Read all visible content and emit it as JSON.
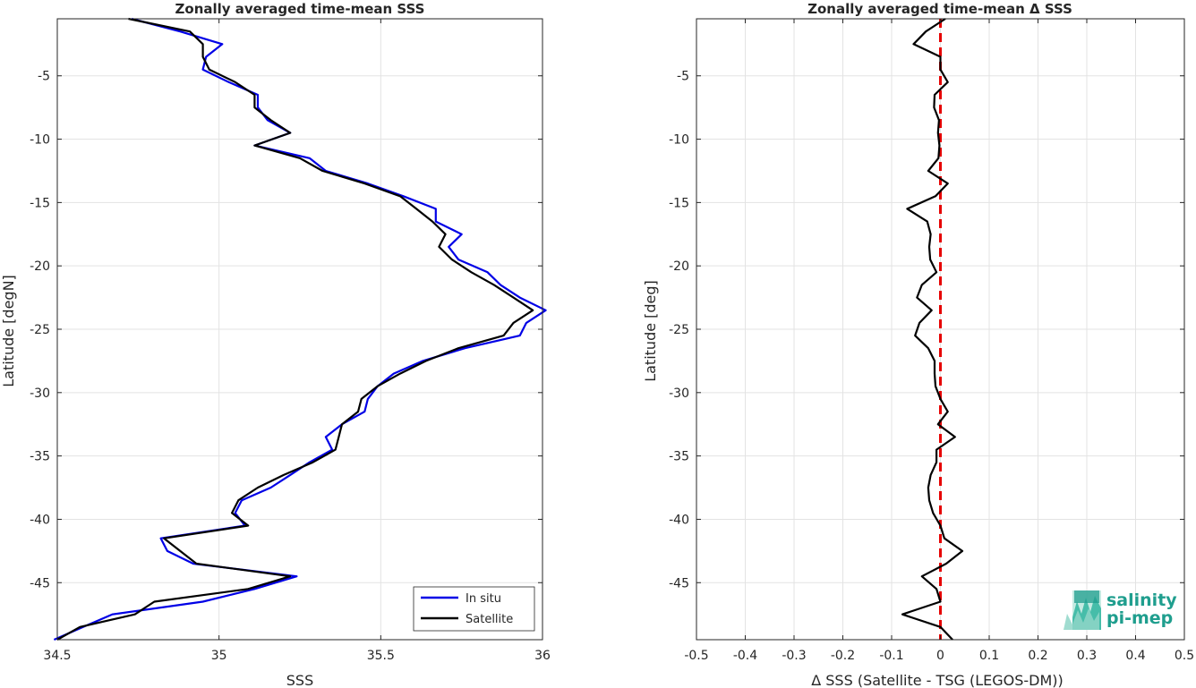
{
  "chart_data": [
    {
      "type": "line",
      "title": "Zonally averaged time-mean SSS",
      "xlabel": "SSS",
      "ylabel": "Latitude [degN]",
      "xlim": [
        34.5,
        36.0
      ],
      "ylim": [
        -49.5,
        -0.5
      ],
      "xticks": [
        "34.5",
        "35",
        "35.5",
        "36"
      ],
      "yticks": [
        "-5",
        "-10",
        "-15",
        "-20",
        "-25",
        "-30",
        "-35",
        "-40",
        "-45"
      ],
      "grid": true,
      "legend": "bottom-right",
      "series": [
        {
          "name": "In situ",
          "color": "#0000e6",
          "points": [
            [
              34.73,
              -0.5
            ],
            [
              34.88,
              -1.5
            ],
            [
              35.01,
              -2.5
            ],
            [
              34.96,
              -3.5
            ],
            [
              34.95,
              -4.5
            ],
            [
              35.03,
              -5.5
            ],
            [
              35.12,
              -6.5
            ],
            [
              35.12,
              -7.5
            ],
            [
              35.15,
              -8.5
            ],
            [
              35.22,
              -9.5
            ],
            [
              35.11,
              -10.5
            ],
            [
              35.28,
              -11.5
            ],
            [
              35.33,
              -12.5
            ],
            [
              35.46,
              -13.5
            ],
            [
              35.57,
              -14.5
            ],
            [
              35.67,
              -15.5
            ],
            [
              35.67,
              -16.5
            ],
            [
              35.75,
              -17.5
            ],
            [
              35.71,
              -18.5
            ],
            [
              35.74,
              -19.5
            ],
            [
              35.83,
              -20.5
            ],
            [
              35.87,
              -21.5
            ],
            [
              35.93,
              -22.5
            ],
            [
              36.01,
              -23.5
            ],
            [
              35.95,
              -24.5
            ],
            [
              35.93,
              -25.5
            ],
            [
              35.76,
              -26.5
            ],
            [
              35.63,
              -27.5
            ],
            [
              35.54,
              -28.5
            ],
            [
              35.49,
              -29.5
            ],
            [
              35.46,
              -30.5
            ],
            [
              35.45,
              -31.5
            ],
            [
              35.38,
              -32.5
            ],
            [
              35.33,
              -33.5
            ],
            [
              35.35,
              -34.5
            ],
            [
              35.28,
              -35.5
            ],
            [
              35.22,
              -36.5
            ],
            [
              35.16,
              -37.5
            ],
            [
              35.07,
              -38.5
            ],
            [
              35.05,
              -39.5
            ],
            [
              35.08,
              -40.5
            ],
            [
              34.82,
              -41.5
            ],
            [
              34.84,
              -42.5
            ],
            [
              34.92,
              -43.5
            ],
            [
              35.24,
              -44.5
            ],
            [
              35.11,
              -45.5
            ],
            [
              34.95,
              -46.5
            ],
            [
              34.67,
              -47.5
            ],
            [
              34.58,
              -48.5
            ],
            [
              34.49,
              -49.5
            ]
          ]
        },
        {
          "name": "Satellite",
          "color": "#000000",
          "points": [
            [
              34.72,
              -0.5
            ],
            [
              34.91,
              -1.5
            ],
            [
              34.95,
              -2.5
            ],
            [
              34.95,
              -3.5
            ],
            [
              34.97,
              -4.5
            ],
            [
              35.05,
              -5.5
            ],
            [
              35.11,
              -6.5
            ],
            [
              35.11,
              -7.5
            ],
            [
              35.16,
              -8.5
            ],
            [
              35.22,
              -9.5
            ],
            [
              35.11,
              -10.5
            ],
            [
              35.25,
              -11.5
            ],
            [
              35.32,
              -12.5
            ],
            [
              35.45,
              -13.5
            ],
            [
              35.56,
              -14.5
            ],
            [
              35.61,
              -15.5
            ],
            [
              35.66,
              -16.5
            ],
            [
              35.7,
              -17.5
            ],
            [
              35.68,
              -18.5
            ],
            [
              35.72,
              -19.5
            ],
            [
              35.78,
              -20.5
            ],
            [
              35.85,
              -21.5
            ],
            [
              35.91,
              -22.5
            ],
            [
              35.97,
              -23.5
            ],
            [
              35.91,
              -24.5
            ],
            [
              35.88,
              -25.5
            ],
            [
              35.74,
              -26.5
            ],
            [
              35.64,
              -27.5
            ],
            [
              35.56,
              -28.5
            ],
            [
              35.49,
              -29.5
            ],
            [
              35.44,
              -30.5
            ],
            [
              35.43,
              -31.5
            ],
            [
              35.38,
              -32.5
            ],
            [
              35.37,
              -33.5
            ],
            [
              35.36,
              -34.5
            ],
            [
              35.29,
              -35.5
            ],
            [
              35.2,
              -36.5
            ],
            [
              35.12,
              -37.5
            ],
            [
              35.06,
              -38.5
            ],
            [
              35.04,
              -39.5
            ],
            [
              35.09,
              -40.5
            ],
            [
              34.83,
              -41.5
            ],
            [
              34.88,
              -42.5
            ],
            [
              34.93,
              -43.5
            ],
            [
              35.22,
              -44.5
            ],
            [
              35.09,
              -45.5
            ],
            [
              34.8,
              -46.5
            ],
            [
              34.74,
              -47.5
            ],
            [
              34.57,
              -48.5
            ],
            [
              34.5,
              -49.5
            ]
          ]
        }
      ]
    },
    {
      "type": "line",
      "title": "Zonally averaged time-mean Δ SSS",
      "xlabel": "Δ SSS (Satellite - TSG (LEGOS-DM))",
      "ylabel": "Latitude [deg]",
      "xlim": [
        -0.5,
        0.5
      ],
      "ylim": [
        -49.5,
        -0.5
      ],
      "xticks": [
        "-0.5",
        "-0.4",
        "-0.3",
        "-0.2",
        "-0.1",
        "0",
        "0.1",
        "0.2",
        "0.3",
        "0.4",
        "0.5"
      ],
      "yticks": [
        "-5",
        "-10",
        "-15",
        "-20",
        "-25",
        "-30",
        "-35",
        "-40",
        "-45"
      ],
      "grid": true,
      "reference_line": {
        "x": 0,
        "color": "#e60000",
        "style": "dashed"
      },
      "series": [
        {
          "color": "#000000",
          "points": [
            [
              0.01,
              -0.5
            ],
            [
              -0.03,
              -1.5
            ],
            [
              -0.055,
              -2.5
            ],
            [
              0.0,
              -3.5
            ],
            [
              0.0,
              -4.5
            ],
            [
              0.015,
              -5.5
            ],
            [
              -0.012,
              -6.5
            ],
            [
              -0.013,
              -7.5
            ],
            [
              -0.003,
              -8.5
            ],
            [
              -0.005,
              -9.5
            ],
            [
              -0.002,
              -10.5
            ],
            [
              -0.004,
              -11.5
            ],
            [
              -0.025,
              -12.5
            ],
            [
              0.015,
              -13.5
            ],
            [
              -0.01,
              -14.5
            ],
            [
              -0.068,
              -15.5
            ],
            [
              -0.027,
              -16.5
            ],
            [
              -0.02,
              -17.5
            ],
            [
              -0.023,
              -18.5
            ],
            [
              -0.021,
              -19.5
            ],
            [
              -0.008,
              -20.5
            ],
            [
              -0.038,
              -21.5
            ],
            [
              -0.048,
              -22.5
            ],
            [
              -0.018,
              -23.5
            ],
            [
              -0.043,
              -24.5
            ],
            [
              -0.052,
              -25.5
            ],
            [
              -0.025,
              -26.5
            ],
            [
              -0.012,
              -27.5
            ],
            [
              -0.012,
              -28.5
            ],
            [
              -0.01,
              -29.5
            ],
            [
              0.0,
              -30.5
            ],
            [
              0.015,
              -31.5
            ],
            [
              -0.005,
              -32.5
            ],
            [
              0.03,
              -33.5
            ],
            [
              -0.008,
              -34.5
            ],
            [
              -0.008,
              -35.5
            ],
            [
              -0.02,
              -36.5
            ],
            [
              -0.025,
              -37.5
            ],
            [
              -0.023,
              -38.5
            ],
            [
              -0.015,
              -39.5
            ],
            [
              0.0,
              -40.5
            ],
            [
              0.008,
              -41.5
            ],
            [
              0.045,
              -42.5
            ],
            [
              0.012,
              -43.5
            ],
            [
              -0.038,
              -44.5
            ],
            [
              -0.008,
              -45.5
            ],
            [
              0.0,
              -46.5
            ],
            [
              -0.078,
              -47.5
            ],
            [
              0.0,
              -48.5
            ],
            [
              0.025,
              -49.5
            ]
          ]
        }
      ]
    }
  ],
  "logo": {
    "line1": "salinity",
    "line2": "pi-mep"
  },
  "colors": {
    "grid": "#e3e3e3",
    "axis": "#262626",
    "in_situ": "#0000e6",
    "satellite": "#000000",
    "reference": "#e60000",
    "logo": "#1f9e8e"
  }
}
